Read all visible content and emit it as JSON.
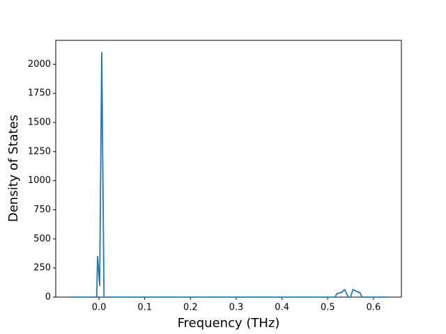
{
  "chart_data": {
    "type": "line",
    "xlabel": "Frequency (THz)",
    "ylabel": "Density of States",
    "color": "#1f77b4",
    "x": [
      -0.062,
      -0.005,
      -0.003,
      0.0015,
      0.006,
      0.011,
      0.516,
      0.52,
      0.53,
      0.537,
      0.545,
      0.55,
      0.555,
      0.565,
      0.57,
      0.575,
      0.63
    ],
    "values": [
      0,
      0,
      350,
      100,
      2100,
      0,
      0,
      30,
      40,
      65,
      0,
      0,
      65,
      45,
      40,
      0,
      0
    ],
    "xlim": [
      -0.0945,
      0.661
    ],
    "ylim": [
      0,
      2205
    ],
    "xticks": [
      {
        "value": 0,
        "label": "0.0"
      },
      0.1,
      0.2,
      0.3,
      0.4,
      0.5,
      0.6
    ],
    "yticks": [
      0,
      250,
      500,
      750,
      1000,
      1250,
      1500,
      1750,
      2000
    ]
  }
}
